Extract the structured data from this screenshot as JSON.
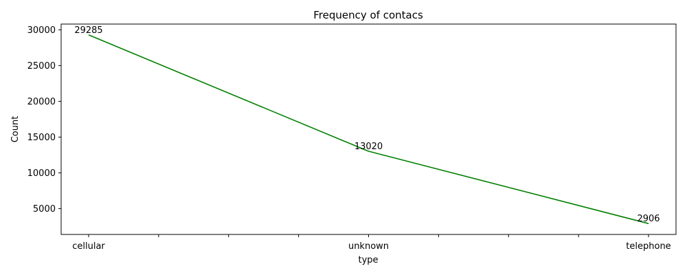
{
  "chart_data": {
    "type": "line",
    "title": "Frequency of contacs",
    "xlabel": "type",
    "ylabel": "Count",
    "categories": [
      "cellular",
      "unknown",
      "telephone"
    ],
    "series": [
      {
        "values": [
          29285,
          13020,
          2906
        ]
      }
    ],
    "x_minor_ticks_between": 3,
    "yticks": [
      5000,
      10000,
      15000,
      20000,
      25000,
      30000
    ],
    "ylim": [
      1387,
      30804
    ],
    "grid": false,
    "legend": "none",
    "colors": {
      "line": "#008000"
    }
  }
}
